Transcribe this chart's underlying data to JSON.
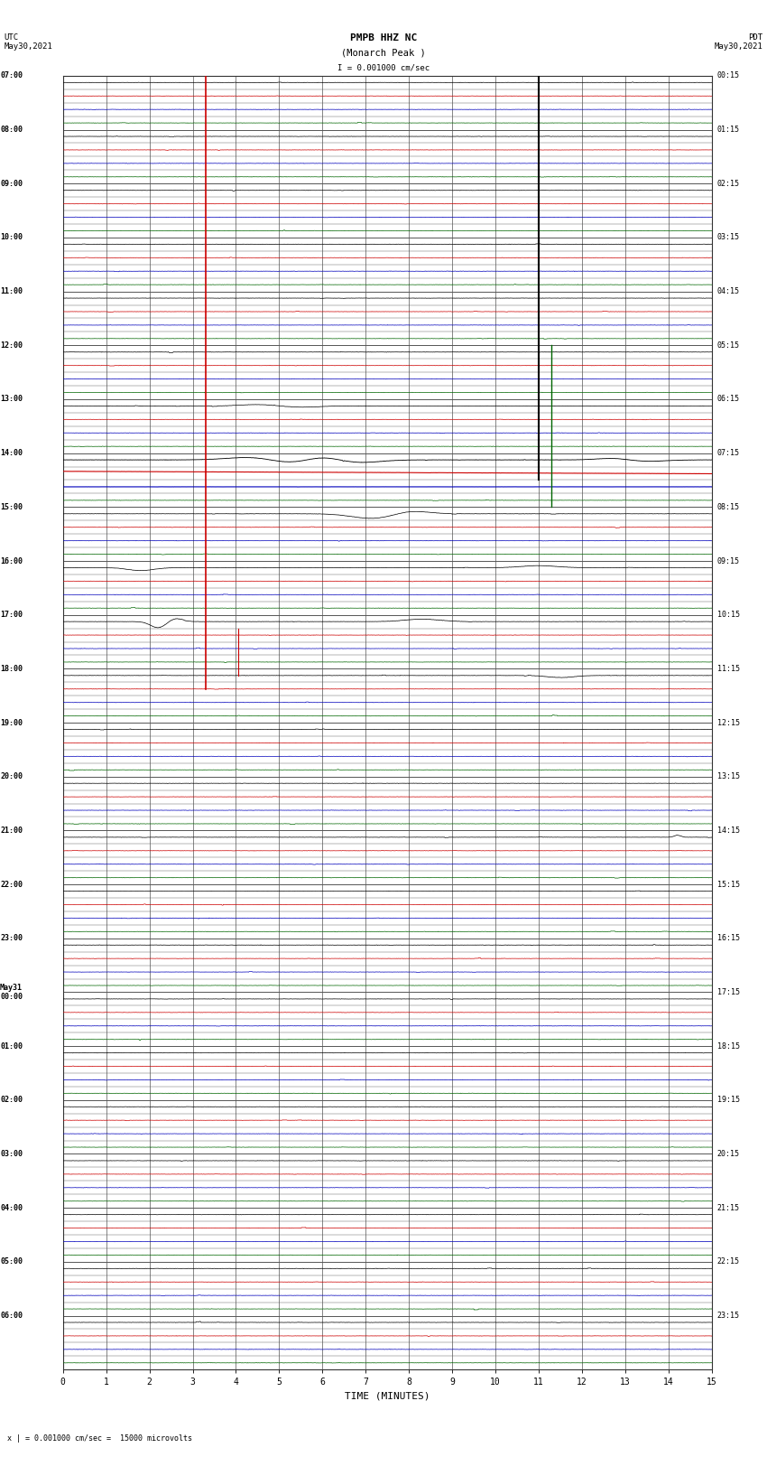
{
  "title_line1": "PMPB HHZ NC",
  "title_line2": "(Monarch Peak )",
  "scale_label": "I = 0.001000 cm/sec",
  "bottom_label": "x | = 0.001000 cm/sec =  15000 microvolts",
  "xlabel": "TIME (MINUTES)",
  "utc_label": "UTC\nMay30,2021",
  "pdt_label": "PDT\nMay30,2021",
  "left_times": [
    "07:00",
    "08:00",
    "09:00",
    "10:00",
    "11:00",
    "12:00",
    "13:00",
    "14:00",
    "15:00",
    "16:00",
    "17:00",
    "18:00",
    "19:00",
    "20:00",
    "21:00",
    "22:00",
    "23:00",
    "May31\n00:00",
    "01:00",
    "02:00",
    "03:00",
    "04:00",
    "05:00",
    "06:00"
  ],
  "right_times": [
    "00:15",
    "01:15",
    "02:15",
    "03:15",
    "04:15",
    "05:15",
    "06:15",
    "07:15",
    "08:15",
    "09:15",
    "10:15",
    "11:15",
    "12:15",
    "13:15",
    "14:15",
    "15:15",
    "16:15",
    "17:15",
    "18:15",
    "19:15",
    "20:15",
    "21:15",
    "22:15",
    "23:15"
  ],
  "n_rows": 24,
  "n_minutes": 15,
  "n_subtraces": 4,
  "background_color": "#ffffff",
  "grid_color": "#555555",
  "subtrace_colors": [
    "#000000",
    "#cc0000",
    "#0000bb",
    "#006600"
  ],
  "trace_color_red": "#cc0000",
  "trace_color_green": "#006600",
  "trace_color_blue": "#0000bb",
  "trace_color_black": "#000000",
  "label_fontsize": 7,
  "title_fontsize": 8,
  "noise_seed": 42
}
